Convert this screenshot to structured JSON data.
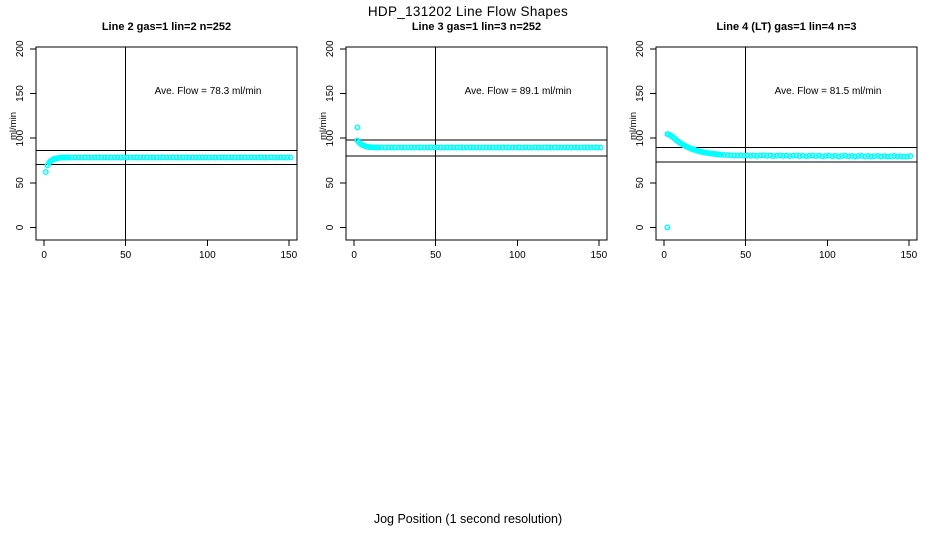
{
  "figure": {
    "title": "HDP_131202  Line Flow Shapes",
    "xlabel": "Jog Position (1 second resolution)",
    "point_color": "#00ffff",
    "line_color": "#000000",
    "background": "#ffffff"
  },
  "chart_data": [
    {
      "type": "scatter",
      "title": "Line 2 gas=1 lin=2 n=252",
      "ylabel": "ml/min",
      "annotation": "Ave. Flow =  78.3  ml/min",
      "ave_flow_ml_min": 78.3,
      "n": 252,
      "legend": "none",
      "grid": false,
      "ref_lines": {
        "upper": 86.1,
        "lower": 70.5,
        "vertical_x": 50
      },
      "x_ticks": [
        0,
        50,
        100,
        150
      ],
      "y_ticks": [
        0,
        50,
        100,
        150,
        200
      ],
      "xlim": [
        -5,
        155
      ],
      "ylim": [
        -14,
        202
      ],
      "points": [
        [
          1,
          62
        ],
        [
          2,
          69.5
        ],
        [
          3,
          72.5
        ],
        [
          4,
          74.4
        ],
        [
          5,
          75.7
        ],
        [
          6,
          76.6
        ],
        [
          7,
          77.2
        ],
        [
          8,
          77.6
        ],
        [
          9,
          77.9
        ],
        [
          10,
          78.1
        ],
        [
          11,
          78.2
        ],
        [
          12,
          78.2
        ],
        [
          13,
          78.3
        ],
        [
          14,
          78.3
        ],
        [
          15,
          78.3
        ],
        [
          17,
          78.2
        ],
        [
          19,
          78.4
        ],
        [
          21,
          78.3
        ],
        [
          23,
          78.2
        ],
        [
          25,
          78.4
        ],
        [
          27,
          78.3
        ],
        [
          29,
          78.2
        ],
        [
          31,
          78.4
        ],
        [
          33,
          78.3
        ],
        [
          35,
          78.2
        ],
        [
          37,
          78.4
        ],
        [
          39,
          78.3
        ],
        [
          41,
          78.2
        ],
        [
          43,
          78.4
        ],
        [
          45,
          78.3
        ],
        [
          47,
          78.2
        ],
        [
          49,
          78.4
        ],
        [
          51,
          78.3
        ],
        [
          53,
          78.2
        ],
        [
          55,
          78.4
        ],
        [
          57,
          78.3
        ],
        [
          59,
          78.2
        ],
        [
          61,
          78.4
        ],
        [
          63,
          78.3
        ],
        [
          65,
          78.2
        ],
        [
          67,
          78.4
        ],
        [
          69,
          78.3
        ],
        [
          71,
          78.2
        ],
        [
          73,
          78.4
        ],
        [
          75,
          78.3
        ],
        [
          77,
          78.2
        ],
        [
          79,
          78.4
        ],
        [
          81,
          78.3
        ],
        [
          83,
          78.2
        ],
        [
          85,
          78.4
        ],
        [
          87,
          78.3
        ],
        [
          89,
          78.2
        ],
        [
          91,
          78.4
        ],
        [
          93,
          78.3
        ],
        [
          95,
          78.2
        ],
        [
          97,
          78.4
        ],
        [
          99,
          78.3
        ],
        [
          101,
          78.2
        ],
        [
          103,
          78.4
        ],
        [
          105,
          78.3
        ],
        [
          107,
          78.2
        ],
        [
          109,
          78.4
        ],
        [
          111,
          78.3
        ],
        [
          113,
          78.2
        ],
        [
          115,
          78.4
        ],
        [
          117,
          78.3
        ],
        [
          119,
          78.2
        ],
        [
          121,
          78.4
        ],
        [
          123,
          78.3
        ],
        [
          125,
          78.2
        ],
        [
          127,
          78.4
        ],
        [
          129,
          78.3
        ],
        [
          131,
          78.2
        ],
        [
          133,
          78.4
        ],
        [
          135,
          78.3
        ],
        [
          137,
          78.2
        ],
        [
          139,
          78.4
        ],
        [
          141,
          78.3
        ],
        [
          143,
          78.2
        ],
        [
          145,
          78.4
        ],
        [
          147,
          78.3
        ],
        [
          149,
          78.2
        ],
        [
          151,
          78.4
        ]
      ]
    },
    {
      "type": "scatter",
      "title": "Line 3 gas=1 lin=3 n=252",
      "ylabel": "ml/min",
      "annotation": "Ave. Flow =  89.1  ml/min",
      "ave_flow_ml_min": 89.1,
      "n": 252,
      "legend": "none",
      "grid": false,
      "ref_lines": {
        "upper": 98.0,
        "lower": 80.2,
        "vertical_x": 50
      },
      "x_ticks": [
        0,
        50,
        100,
        150
      ],
      "y_ticks": [
        0,
        50,
        100,
        150,
        200
      ],
      "xlim": [
        -5,
        155
      ],
      "ylim": [
        -14,
        202
      ],
      "points": [
        [
          2,
          112
        ],
        [
          2,
          97.5
        ],
        [
          3,
          95.2
        ],
        [
          4,
          93.6
        ],
        [
          5,
          92.4
        ],
        [
          6,
          91.5
        ],
        [
          7,
          90.9
        ],
        [
          8,
          90.4
        ],
        [
          9,
          90.1
        ],
        [
          10,
          89.9
        ],
        [
          11,
          89.8
        ],
        [
          12,
          89.7
        ],
        [
          13,
          89.6
        ],
        [
          14,
          89.6
        ],
        [
          15,
          89.5
        ],
        [
          17,
          89.6
        ],
        [
          19,
          89.4
        ],
        [
          21,
          89.6
        ],
        [
          23,
          89.5
        ],
        [
          25,
          89.4
        ],
        [
          27,
          89.6
        ],
        [
          29,
          89.5
        ],
        [
          31,
          89.4
        ],
        [
          33,
          89.6
        ],
        [
          35,
          89.5
        ],
        [
          37,
          89.4
        ],
        [
          39,
          89.6
        ],
        [
          41,
          89.5
        ],
        [
          43,
          89.4
        ],
        [
          45,
          89.6
        ],
        [
          47,
          89.5
        ],
        [
          49,
          89.4
        ],
        [
          51,
          89.6
        ],
        [
          53,
          89.5
        ],
        [
          55,
          89.4
        ],
        [
          57,
          89.6
        ],
        [
          59,
          89.5
        ],
        [
          61,
          89.4
        ],
        [
          63,
          89.6
        ],
        [
          65,
          89.5
        ],
        [
          67,
          89.4
        ],
        [
          69,
          89.6
        ],
        [
          71,
          89.5
        ],
        [
          73,
          89.4
        ],
        [
          75,
          89.6
        ],
        [
          77,
          89.5
        ],
        [
          79,
          89.4
        ],
        [
          81,
          89.6
        ],
        [
          83,
          89.5
        ],
        [
          85,
          89.4
        ],
        [
          87,
          89.6
        ],
        [
          89,
          89.5
        ],
        [
          91,
          89.4
        ],
        [
          93,
          89.6
        ],
        [
          95,
          89.5
        ],
        [
          97,
          89.4
        ],
        [
          99,
          89.6
        ],
        [
          101,
          89.5
        ],
        [
          103,
          89.4
        ],
        [
          105,
          89.6
        ],
        [
          107,
          89.5
        ],
        [
          109,
          89.4
        ],
        [
          111,
          89.6
        ],
        [
          113,
          89.5
        ],
        [
          115,
          89.4
        ],
        [
          117,
          89.6
        ],
        [
          119,
          89.5
        ],
        [
          121,
          89.4
        ],
        [
          123,
          89.6
        ],
        [
          125,
          89.5
        ],
        [
          127,
          89.4
        ],
        [
          129,
          89.6
        ],
        [
          131,
          89.5
        ],
        [
          133,
          89.4
        ],
        [
          135,
          89.6
        ],
        [
          137,
          89.5
        ],
        [
          139,
          89.4
        ],
        [
          141,
          89.6
        ],
        [
          143,
          89.5
        ],
        [
          145,
          89.4
        ],
        [
          147,
          89.6
        ],
        [
          149,
          89.5
        ],
        [
          151,
          89.4
        ]
      ]
    },
    {
      "type": "scatter",
      "title": "Line 4 (LT) gas=1 lin=4 n=3",
      "ylabel": "ml/min",
      "annotation": "Ave. Flow =  81.5  ml/min",
      "ave_flow_ml_min": 81.5,
      "n": 3,
      "legend": "none",
      "grid": false,
      "ref_lines": {
        "upper": 89.7,
        "lower": 73.4,
        "vertical_x": 50
      },
      "x_ticks": [
        0,
        50,
        100,
        150
      ],
      "y_ticks": [
        0,
        50,
        100,
        150,
        200
      ],
      "xlim": [
        -5,
        155
      ],
      "ylim": [
        -14,
        202
      ],
      "points": [
        [
          2,
          0
        ],
        [
          2,
          104.5
        ],
        [
          3,
          104
        ],
        [
          4,
          103
        ],
        [
          5,
          101.6
        ],
        [
          6,
          100.1
        ],
        [
          7,
          98.6
        ],
        [
          8,
          97.1
        ],
        [
          9,
          95.7
        ],
        [
          10,
          94.4
        ],
        [
          11,
          93.2
        ],
        [
          12,
          92.1
        ],
        [
          13,
          91.1
        ],
        [
          14,
          90.2
        ],
        [
          15,
          89.4
        ],
        [
          16,
          88.6
        ],
        [
          17,
          87.9
        ],
        [
          18,
          87.3
        ],
        [
          19,
          86.7
        ],
        [
          20,
          86.1
        ],
        [
          21,
          85.6
        ],
        [
          22,
          85.1
        ],
        [
          23,
          84.7
        ],
        [
          24,
          84.3
        ],
        [
          25,
          83.9
        ],
        [
          26,
          83.6
        ],
        [
          27,
          83.3
        ],
        [
          28,
          83
        ],
        [
          29,
          82.7
        ],
        [
          30,
          82.5
        ],
        [
          31,
          82.3
        ],
        [
          32,
          82.1
        ],
        [
          33,
          81.9
        ],
        [
          34,
          81.7
        ],
        [
          35,
          81.5
        ],
        [
          37,
          81.2
        ],
        [
          39,
          81
        ],
        [
          41,
          80.8
        ],
        [
          43,
          80.6
        ],
        [
          45,
          80.5
        ],
        [
          47,
          80.9
        ],
        [
          49,
          80.3
        ],
        [
          51,
          80.7
        ],
        [
          53,
          80.2
        ],
        [
          55,
          80.6
        ],
        [
          57,
          80.1
        ],
        [
          59,
          80.5
        ],
        [
          61,
          80.8
        ],
        [
          63,
          80.2
        ],
        [
          65,
          80.6
        ],
        [
          67,
          80
        ],
        [
          69,
          80.4
        ],
        [
          71,
          80.7
        ],
        [
          73,
          80.1
        ],
        [
          75,
          80.5
        ],
        [
          77,
          79.9
        ],
        [
          79,
          80.3
        ],
        [
          81,
          80.6
        ],
        [
          83,
          80
        ],
        [
          85,
          80.4
        ],
        [
          87,
          79.8
        ],
        [
          89,
          80.2
        ],
        [
          91,
          80.5
        ],
        [
          93,
          79.9
        ],
        [
          95,
          80.3
        ],
        [
          97,
          79.7
        ],
        [
          99,
          80.1
        ],
        [
          101,
          80.4
        ],
        [
          103,
          79.8
        ],
        [
          105,
          80.2
        ],
        [
          107,
          79.6
        ],
        [
          109,
          80
        ],
        [
          111,
          80.3
        ],
        [
          113,
          79.7
        ],
        [
          115,
          80.1
        ],
        [
          117,
          79.5
        ],
        [
          119,
          79.9
        ],
        [
          121,
          80.2
        ],
        [
          123,
          79.6
        ],
        [
          125,
          80
        ],
        [
          127,
          79.4
        ],
        [
          129,
          79.8
        ],
        [
          131,
          80.1
        ],
        [
          133,
          79.5
        ],
        [
          135,
          79.9
        ],
        [
          137,
          79.3
        ],
        [
          139,
          79.7
        ],
        [
          141,
          80
        ],
        [
          143,
          79.4
        ],
        [
          145,
          79.8
        ],
        [
          147,
          79.2
        ],
        [
          149,
          79.6
        ],
        [
          151,
          79.9
        ]
      ]
    }
  ]
}
